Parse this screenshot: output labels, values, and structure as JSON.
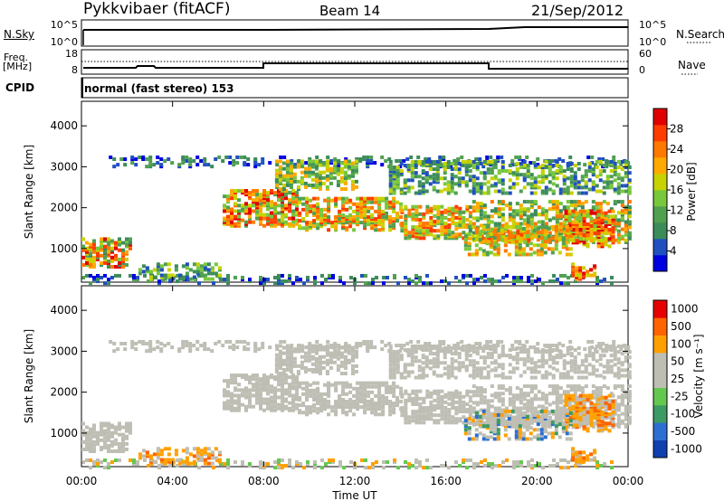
{
  "header": {
    "station": "Pykkvibaer (fitACF)",
    "beam": "Beam 14",
    "date": "21/Sep/2012"
  },
  "top_panels": {
    "nsky_label": "N.Sky",
    "nsky_ticks": [
      "10^5",
      "10^0"
    ],
    "nsearch_label": "N.Search",
    "nsearch_ticks": [
      "10^5",
      "10^0"
    ],
    "freq_label": "Freq.",
    "freq_unit": "[MHz]",
    "freq_ticks": [
      "18",
      "8"
    ],
    "nave_label": "Nave",
    "nave_ticks": [
      "60",
      "0"
    ],
    "cpid_label": "CPID",
    "cpid_value": "normal (fast stereo) 153"
  },
  "chart_data": [
    {
      "type": "heatmap",
      "ylabel": "Slant Range [km]",
      "y_ticks": [
        "4000",
        "3000",
        "2000",
        "1000"
      ],
      "y_tick_values": [
        4000,
        3000,
        2000,
        1000
      ],
      "ylim": [
        180,
        4600
      ],
      "xlim_hours": [
        0,
        24
      ],
      "colorbar": {
        "label": "Power [dB]",
        "ticks": [
          "28",
          "24",
          "20",
          "16",
          "12",
          "8",
          "4"
        ],
        "range": [
          0,
          32
        ],
        "colors": [
          "#0000e0",
          "#2050c0",
          "#3c8c5a",
          "#50a050",
          "#78c83c",
          "#c8d200",
          "#ffaa00",
          "#ff7800",
          "#ff3c00",
          "#e00000"
        ]
      }
    },
    {
      "type": "heatmap",
      "ylabel": "Slant Range [km]",
      "y_ticks": [
        "4000",
        "3000",
        "2000",
        "1000"
      ],
      "y_tick_values": [
        4000,
        3000,
        2000,
        1000
      ],
      "ylim": [
        180,
        4600
      ],
      "xlim_hours": [
        0,
        24
      ],
      "colorbar": {
        "label": "Velocity [m s⁻¹]",
        "ticks": [
          "1000",
          "500",
          "100",
          "50",
          "25",
          "-25",
          "-100",
          "-500",
          "-1000"
        ],
        "colors": [
          "#1040b0",
          "#2d6ed2",
          "#3c9a64",
          "#64c850",
          "#bebeb4",
          "#bebeb4",
          "#ffa000",
          "#ff6400",
          "#e60000"
        ]
      }
    }
  ],
  "x_axis": {
    "ticks": [
      "00:00",
      "04:00",
      "08:00",
      "12:00",
      "16:00",
      "20:00",
      "00:00"
    ],
    "tick_hours": [
      0,
      4,
      8,
      12,
      16,
      20,
      24
    ],
    "label": "Time UT"
  }
}
